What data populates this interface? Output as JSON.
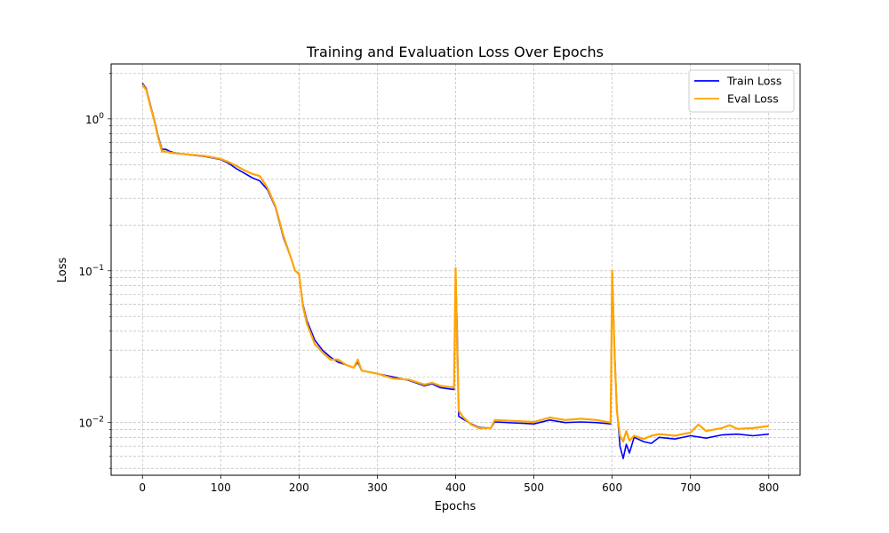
{
  "chart_data": {
    "type": "line",
    "title": "Training and Evaluation Loss Over Epochs",
    "xlabel": "Epochs",
    "ylabel": "Loss",
    "yscale": "log",
    "xlim": [
      -40,
      840
    ],
    "ylim": [
      0.0045,
      2.3
    ],
    "xticks": [
      0,
      100,
      200,
      300,
      400,
      500,
      600,
      700,
      800
    ],
    "xtick_labels": [
      "0",
      "100",
      "200",
      "300",
      "400",
      "500",
      "600",
      "700",
      "800"
    ],
    "yticks": [
      0.01,
      0.1,
      1.0
    ],
    "ytick_bases": [
      "10",
      "10",
      "10"
    ],
    "ytick_exponents": [
      "−2",
      "−1",
      "0"
    ],
    "grid": true,
    "legend_position": "top-right",
    "series": [
      {
        "name": "Train Loss",
        "color": "#0000ff",
        "points": [
          [
            0,
            1.72
          ],
          [
            5,
            1.58
          ],
          [
            10,
            1.25
          ],
          [
            15,
            1.0
          ],
          [
            20,
            0.78
          ],
          [
            25,
            0.63
          ],
          [
            30,
            0.63
          ],
          [
            35,
            0.61
          ],
          [
            40,
            0.6
          ],
          [
            60,
            0.58
          ],
          [
            80,
            0.565
          ],
          [
            100,
            0.54
          ],
          [
            110,
            0.51
          ],
          [
            120,
            0.47
          ],
          [
            130,
            0.44
          ],
          [
            140,
            0.41
          ],
          [
            150,
            0.39
          ],
          [
            160,
            0.34
          ],
          [
            170,
            0.26
          ],
          [
            180,
            0.165
          ],
          [
            190,
            0.12
          ],
          [
            195,
            0.1
          ],
          [
            200,
            0.095
          ],
          [
            205,
            0.06
          ],
          [
            210,
            0.047
          ],
          [
            220,
            0.035
          ],
          [
            230,
            0.03
          ],
          [
            240,
            0.027
          ],
          [
            250,
            0.025
          ],
          [
            260,
            0.024
          ],
          [
            270,
            0.023
          ],
          [
            275,
            0.025
          ],
          [
            280,
            0.022
          ],
          [
            300,
            0.021
          ],
          [
            320,
            0.02
          ],
          [
            340,
            0.019
          ],
          [
            360,
            0.0175
          ],
          [
            370,
            0.018
          ],
          [
            380,
            0.017
          ],
          [
            398,
            0.0165
          ],
          [
            400,
            0.1
          ],
          [
            402,
            0.04
          ],
          [
            404,
            0.011
          ],
          [
            410,
            0.0105
          ],
          [
            420,
            0.0098
          ],
          [
            430,
            0.0093
          ],
          [
            445,
            0.0092
          ],
          [
            450,
            0.0101
          ],
          [
            500,
            0.0098
          ],
          [
            520,
            0.0104
          ],
          [
            540,
            0.01
          ],
          [
            560,
            0.0101
          ],
          [
            580,
            0.01
          ],
          [
            598,
            0.0098
          ],
          [
            600,
            0.098
          ],
          [
            603,
            0.03
          ],
          [
            606,
            0.0125
          ],
          [
            610,
            0.007
          ],
          [
            614,
            0.0058
          ],
          [
            618,
            0.0072
          ],
          [
            622,
            0.0063
          ],
          [
            628,
            0.008
          ],
          [
            640,
            0.0075
          ],
          [
            650,
            0.0073
          ],
          [
            660,
            0.008
          ],
          [
            680,
            0.0078
          ],
          [
            700,
            0.0082
          ],
          [
            720,
            0.0079
          ],
          [
            740,
            0.0083
          ],
          [
            760,
            0.0084
          ],
          [
            780,
            0.0082
          ],
          [
            800,
            0.0084
          ]
        ]
      },
      {
        "name": "Eval Loss",
        "color": "#ffa500",
        "points": [
          [
            0,
            1.68
          ],
          [
            5,
            1.55
          ],
          [
            10,
            1.22
          ],
          [
            15,
            0.98
          ],
          [
            20,
            0.76
          ],
          [
            25,
            0.61
          ],
          [
            30,
            0.61
          ],
          [
            35,
            0.6
          ],
          [
            40,
            0.595
          ],
          [
            60,
            0.582
          ],
          [
            80,
            0.57
          ],
          [
            100,
            0.545
          ],
          [
            110,
            0.52
          ],
          [
            120,
            0.49
          ],
          [
            130,
            0.46
          ],
          [
            140,
            0.435
          ],
          [
            150,
            0.42
          ],
          [
            160,
            0.35
          ],
          [
            170,
            0.265
          ],
          [
            180,
            0.17
          ],
          [
            190,
            0.12
          ],
          [
            195,
            0.1
          ],
          [
            200,
            0.096
          ],
          [
            205,
            0.058
          ],
          [
            210,
            0.045
          ],
          [
            220,
            0.033
          ],
          [
            230,
            0.029
          ],
          [
            240,
            0.026
          ],
          [
            250,
            0.026
          ],
          [
            260,
            0.024
          ],
          [
            270,
            0.023
          ],
          [
            275,
            0.026
          ],
          [
            280,
            0.022
          ],
          [
            300,
            0.021
          ],
          [
            320,
            0.0195
          ],
          [
            340,
            0.0192
          ],
          [
            360,
            0.0178
          ],
          [
            370,
            0.0183
          ],
          [
            380,
            0.0175
          ],
          [
            398,
            0.017
          ],
          [
            400,
            0.104
          ],
          [
            402,
            0.03
          ],
          [
            404,
            0.012
          ],
          [
            410,
            0.0108
          ],
          [
            420,
            0.0097
          ],
          [
            430,
            0.0092
          ],
          [
            445,
            0.0092
          ],
          [
            450,
            0.0104
          ],
          [
            500,
            0.0101
          ],
          [
            520,
            0.0108
          ],
          [
            540,
            0.0104
          ],
          [
            560,
            0.0106
          ],
          [
            580,
            0.0104
          ],
          [
            598,
            0.01
          ],
          [
            600,
            0.1
          ],
          [
            603,
            0.028
          ],
          [
            606,
            0.012
          ],
          [
            610,
            0.0082
          ],
          [
            614,
            0.0075
          ],
          [
            618,
            0.0088
          ],
          [
            622,
            0.0076
          ],
          [
            628,
            0.0082
          ],
          [
            640,
            0.0078
          ],
          [
            650,
            0.0082
          ],
          [
            660,
            0.0084
          ],
          [
            680,
            0.0082
          ],
          [
            700,
            0.0086
          ],
          [
            710,
            0.0097
          ],
          [
            720,
            0.0088
          ],
          [
            740,
            0.0092
          ],
          [
            750,
            0.0096
          ],
          [
            760,
            0.0091
          ],
          [
            780,
            0.0092
          ],
          [
            800,
            0.0095
          ]
        ]
      }
    ]
  }
}
